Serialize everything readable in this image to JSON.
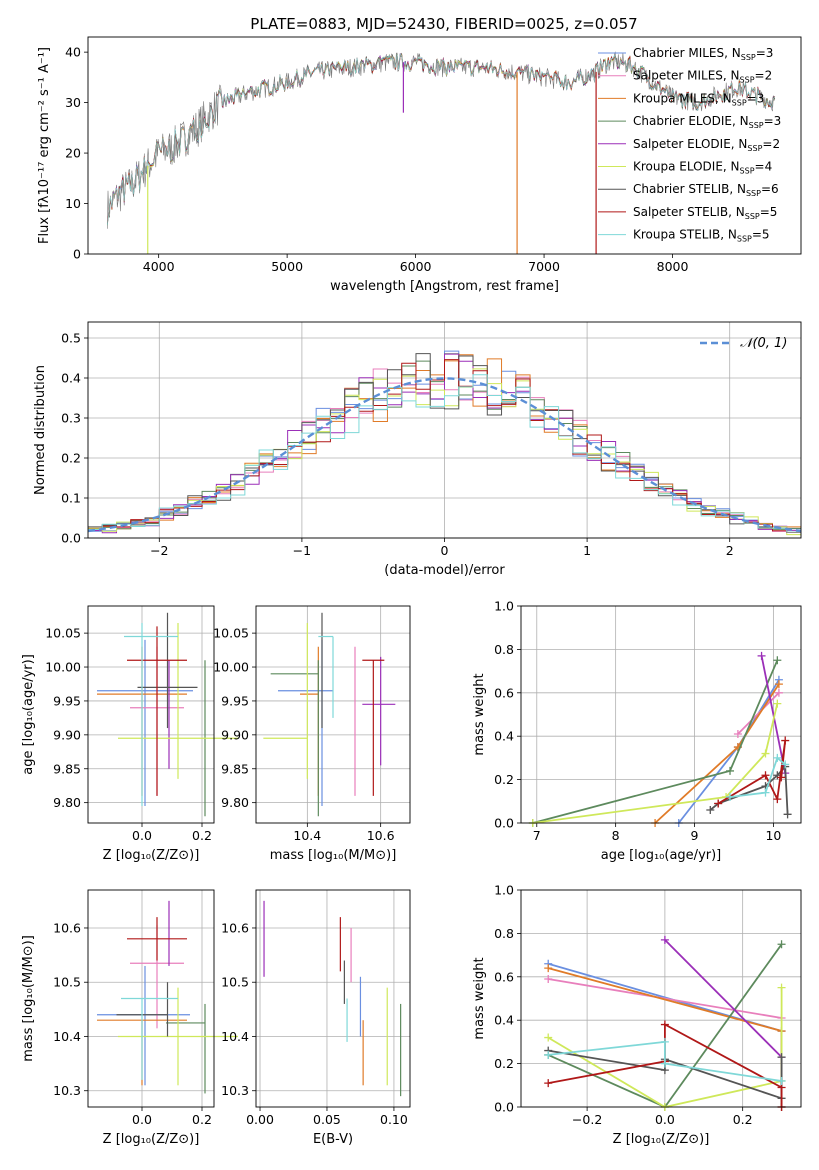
{
  "figure_title": "PLATE=0883, MJD=52430, FIBERID=0025, z=0.057",
  "colors": {
    "Chabrier MILES": "#6a8fe0",
    "Salpeter MILES": "#e87fbc",
    "Kroupa MILES": "#e07b28",
    "Chabrier ELODIE": "#5d8a5d",
    "Salpeter ELODIE": "#9b2fb8",
    "Kroupa ELODIE": "#cfe85a",
    "Chabrier STELIB": "#555555",
    "Salpeter STELIB": "#b01818",
    "Kroupa STELIB": "#7fd8d8"
  },
  "chart_data": [
    {
      "id": "spectrum",
      "type": "line",
      "title": "",
      "xlabel": "wavelength [Angstrom, rest frame]",
      "ylabel": "Flux [fλ10⁻¹⁷ erg cm⁻² s⁻¹ A⁻¹]",
      "xlim": [
        3450,
        9000
      ],
      "ylim": [
        0,
        43
      ],
      "xticks": [
        4000,
        5000,
        6000,
        7000,
        8000
      ],
      "yticks": [
        0,
        10,
        20,
        30,
        40
      ],
      "grid": false,
      "legend_position": "right",
      "legend": [
        "Chabrier MILES, N_SSP=3",
        "Salpeter MILES, N_SSP=2",
        "Kroupa MILES, N_SSP=3",
        "Chabrier ELODIE, N_SSP=3",
        "Salpeter ELODIE, N_SSP=2",
        "Kroupa ELODIE, N_SSP=4",
        "Chabrier STELIB, N_SSP=6",
        "Salpeter STELIB, N_SSP=5",
        "Kroupa STELIB, N_SSP=5"
      ],
      "continuum_x": [
        3600,
        3700,
        3800,
        3900,
        4000,
        4100,
        4200,
        4300,
        4400,
        4500,
        4700,
        5000,
        5200,
        5500,
        5800,
        6000,
        6200,
        6500,
        6800,
        7000,
        7200,
        7400,
        7500,
        7600,
        7700,
        7800,
        8000,
        8200,
        8500,
        8800
      ],
      "continuum_y": [
        9,
        12,
        14,
        17,
        20,
        21,
        23,
        25,
        28,
        30,
        32,
        34,
        36,
        37,
        38,
        38,
        37,
        37,
        36,
        35,
        34,
        36,
        38,
        38,
        37,
        35,
        31,
        30,
        33,
        30
      ]
    },
    {
      "id": "residuals",
      "type": "histogram",
      "xlabel": "(data-model)/error",
      "ylabel": "Normed distribution",
      "xlim": [
        -2.5,
        2.5
      ],
      "ylim": [
        0,
        0.54
      ],
      "xticks": [
        -2,
        -1,
        0,
        1,
        2
      ],
      "yticks": [
        0.0,
        0.1,
        0.2,
        0.3,
        0.4,
        0.5
      ],
      "grid": true,
      "legend": [
        "𝒩(0, 1)"
      ],
      "legend_position": "top-right",
      "bin_width": 0.1,
      "reference_curve": "normal(0,1)"
    },
    {
      "id": "z_age",
      "type": "errorbar",
      "xlabel": "Z [log₁₀(Z/Z⊙)]",
      "ylabel": "age  [log₁₀(age/yr)]",
      "xlim": [
        -0.18,
        0.24
      ],
      "ylim": [
        9.77,
        10.09
      ],
      "xticks": [
        0.0,
        0.2
      ],
      "yticks": [
        9.8,
        9.85,
        9.9,
        9.95,
        10.0,
        10.05
      ],
      "grid": true,
      "points": [
        {
          "model": "Chabrier MILES",
          "x": 0.01,
          "xerr": [
            0.16,
            0.16
          ],
          "y": 9.965,
          "yerr": [
            0.17,
            0.075
          ]
        },
        {
          "model": "Salpeter MILES",
          "x": 0.05,
          "xerr": [
            0.09,
            0.09
          ],
          "y": 9.94,
          "yerr": [
            0.13,
            0.09
          ]
        },
        {
          "model": "Kroupa MILES",
          "x": 0.0,
          "xerr": [
            0.15,
            0.15
          ],
          "y": 9.96,
          "yerr": [
            0.15,
            0.07
          ]
        },
        {
          "model": "Chabrier ELODIE",
          "x": 0.21,
          "xerr": [
            0.0,
            0.0
          ],
          "y": 9.99,
          "yerr": [
            0.21,
            0.02
          ]
        },
        {
          "model": "Salpeter ELODIE",
          "x": 0.09,
          "xerr": [
            0.0,
            0.0
          ],
          "y": 9.94,
          "yerr": [
            0.09,
            0.07
          ]
        },
        {
          "model": "Kroupa ELODIE",
          "x": 0.12,
          "xerr": [
            0.2,
            0.2
          ],
          "y": 9.895,
          "yerr": [
            0.06,
            0.17
          ]
        },
        {
          "model": "Chabrier STELIB",
          "x": 0.085,
          "xerr": [
            0.1,
            0.1
          ],
          "y": 9.97,
          "yerr": [
            0.06,
            0.11
          ]
        },
        {
          "model": "Salpeter STELIB",
          "x": 0.05,
          "xerr": [
            0.1,
            0.1
          ],
          "y": 10.01,
          "yerr": [
            0.2,
            0.05
          ]
        },
        {
          "model": "Kroupa STELIB",
          "x": 0.0,
          "xerr": [
            0.06,
            0.12
          ],
          "y": 10.045,
          "yerr": [
            0.25,
            0.02
          ]
        }
      ]
    },
    {
      "id": "mass_age",
      "type": "errorbar",
      "xlabel": "mass [log₁₀(M/M⊙)]",
      "ylabel": "",
      "xlim": [
        10.26,
        10.68
      ],
      "ylim": [
        9.77,
        10.09
      ],
      "xticks": [
        10.4,
        10.6
      ],
      "yticks": [
        9.8,
        9.85,
        9.9,
        9.95,
        10.0,
        10.05
      ],
      "grid": true,
      "points": [
        {
          "model": "Chabrier MILES",
          "x": 10.44,
          "xerr": [
            0.12,
            0.03
          ],
          "y": 9.965,
          "yerr": [
            0.17,
            0.075
          ]
        },
        {
          "model": "Salpeter MILES",
          "x": 10.53,
          "xerr": [
            0.0,
            0.0
          ],
          "y": 9.94,
          "yerr": [
            0.13,
            0.09
          ]
        },
        {
          "model": "Kroupa MILES",
          "x": 10.43,
          "xerr": [
            0.05,
            0.0
          ],
          "y": 9.96,
          "yerr": [
            0.15,
            0.07
          ]
        },
        {
          "model": "Chabrier ELODIE",
          "x": 10.43,
          "xerr": [
            0.13,
            0.0
          ],
          "y": 9.99,
          "yerr": [
            0.21,
            0.02
          ]
        },
        {
          "model": "Salpeter ELODIE",
          "x": 10.6,
          "xerr": [
            0.05,
            0.04
          ],
          "y": 9.945,
          "yerr": [
            0.09,
            0.07
          ]
        },
        {
          "model": "Kroupa ELODIE",
          "x": 10.4,
          "xerr": [
            0.12,
            0.0
          ],
          "y": 9.895,
          "yerr": [
            0.06,
            0.17
          ]
        },
        {
          "model": "Chabrier STELIB",
          "x": 10.44,
          "xerr": [
            0.0,
            0.0
          ],
          "y": 9.97,
          "yerr": [
            0.06,
            0.11
          ]
        },
        {
          "model": "Salpeter STELIB",
          "x": 10.58,
          "xerr": [
            0.03,
            0.03
          ],
          "y": 10.01,
          "yerr": [
            0.2,
            0.0
          ]
        },
        {
          "model": "Kroupa STELIB",
          "x": 10.47,
          "xerr": [
            0.04,
            0.0
          ],
          "y": 10.045,
          "yerr": [
            0.12,
            0.0
          ]
        }
      ]
    },
    {
      "id": "age_weight",
      "type": "line",
      "xlabel": "age  [log₁₀(age/yr)]",
      "ylabel": "mass weight",
      "xlim": [
        6.8,
        10.35
      ],
      "ylim": [
        0.0,
        1.0
      ],
      "xticks": [
        7,
        8,
        9,
        10
      ],
      "yticks": [
        0.0,
        0.2,
        0.4,
        0.6,
        0.8,
        1.0
      ],
      "grid": true,
      "series": [
        {
          "model": "Chabrier MILES",
          "x": [
            8.8,
            9.55,
            10.07
          ],
          "y": [
            0.0,
            0.35,
            0.66
          ]
        },
        {
          "model": "Salpeter MILES",
          "x": [
            9.55,
            10.07
          ],
          "y": [
            0.41,
            0.6
          ]
        },
        {
          "model": "Kroupa MILES",
          "x": [
            8.5,
            9.55,
            10.07
          ],
          "y": [
            0.0,
            0.35,
            0.64
          ]
        },
        {
          "model": "Chabrier ELODIE",
          "x": [
            6.95,
            9.45,
            10.05
          ],
          "y": [
            0.0,
            0.24,
            0.75
          ]
        },
        {
          "model": "Salpeter ELODIE",
          "x": [
            9.85,
            10.15
          ],
          "y": [
            0.77,
            0.23
          ]
        },
        {
          "model": "Kroupa ELODIE",
          "x": [
            6.95,
            9.4,
            9.9,
            10.05
          ],
          "y": [
            0.0,
            0.12,
            0.32,
            0.55
          ]
        },
        {
          "model": "Chabrier STELIB",
          "x": [
            9.2,
            9.3,
            9.9,
            10.05,
            10.15,
            10.18
          ],
          "y": [
            0.06,
            0.09,
            0.17,
            0.22,
            0.26,
            0.04
          ]
        },
        {
          "model": "Salpeter STELIB",
          "x": [
            9.3,
            9.9,
            10.05,
            10.15,
            10.1
          ],
          "y": [
            0.09,
            0.22,
            0.11,
            0.38,
            0.21
          ]
        },
        {
          "model": "Kroupa STELIB",
          "x": [
            9.45,
            9.9,
            10.05,
            10.15
          ],
          "y": [
            0.12,
            0.14,
            0.3,
            0.27
          ]
        }
      ]
    },
    {
      "id": "z_mass",
      "type": "errorbar",
      "xlabel": "Z [log₁₀(Z/Z⊙)]",
      "ylabel": "mass [log₁₀(M/M⊙)]",
      "xlim": [
        -0.18,
        0.24
      ],
      "ylim": [
        10.27,
        10.67
      ],
      "xticks": [
        0.0,
        0.2
      ],
      "yticks": [
        10.3,
        10.4,
        10.5,
        10.6
      ],
      "grid": true,
      "points": [
        {
          "model": "Chabrier MILES",
          "x": 0.01,
          "xerr": [
            0.16,
            0.15
          ],
          "y": 10.44,
          "yerr": [
            0.13,
            0.09
          ]
        },
        {
          "model": "Salpeter MILES",
          "x": 0.05,
          "xerr": [
            0.09,
            0.09
          ],
          "y": 10.535,
          "yerr": [
            0.12,
            0.07
          ]
        },
        {
          "model": "Kroupa MILES",
          "x": 0.0,
          "xerr": [
            0.15,
            0.15
          ],
          "y": 10.43,
          "yerr": [
            0.12,
            0.0
          ]
        },
        {
          "model": "Chabrier ELODIE",
          "x": 0.21,
          "xerr": [
            0.13,
            0.0
          ],
          "y": 10.425,
          "yerr": [
            0.13,
            0.035
          ]
        },
        {
          "model": "Salpeter ELODIE",
          "x": 0.09,
          "xerr": [
            0.0,
            0.0
          ],
          "y": 10.6,
          "yerr": [
            0.07,
            0.05
          ]
        },
        {
          "model": "Kroupa ELODIE",
          "x": 0.12,
          "xerr": [
            0.2,
            0.2
          ],
          "y": 10.4,
          "yerr": [
            0.09,
            0.09
          ]
        },
        {
          "model": "Chabrier STELIB",
          "x": 0.085,
          "xerr": [
            0.17,
            0.0
          ],
          "y": 10.44,
          "yerr": [
            0.04,
            0.06
          ]
        },
        {
          "model": "Salpeter STELIB",
          "x": 0.05,
          "xerr": [
            0.1,
            0.1
          ],
          "y": 10.58,
          "yerr": [
            0.04,
            0.04
          ]
        },
        {
          "model": "Kroupa STELIB",
          "x": 0.0,
          "xerr": [
            0.07,
            0.12
          ],
          "y": 10.47,
          "yerr": [
            0.15,
            0.0
          ]
        }
      ]
    },
    {
      "id": "ebv_mass",
      "type": "errorbar",
      "xlabel": "E(B-V)",
      "ylabel": "",
      "xlim": [
        -0.003,
        0.112
      ],
      "ylim": [
        10.27,
        10.67
      ],
      "xticks": [
        0.0,
        0.05,
        0.1
      ],
      "yticks": [
        10.3,
        10.4,
        10.5,
        10.6
      ],
      "grid": true,
      "points": [
        {
          "model": "Chabrier MILES",
          "x": 0.075,
          "xerr": [
            0,
            0
          ],
          "y": 10.47,
          "yerr": [
            0.07,
            0.04
          ]
        },
        {
          "model": "Salpeter MILES",
          "x": 0.068,
          "xerr": [
            0,
            0
          ],
          "y": 10.56,
          "yerr": [
            0.06,
            0.04
          ]
        },
        {
          "model": "Kroupa MILES",
          "x": 0.077,
          "xerr": [
            0,
            0
          ],
          "y": 10.43,
          "yerr": [
            0.12,
            0.0
          ]
        },
        {
          "model": "Chabrier ELODIE",
          "x": 0.105,
          "xerr": [
            0,
            0
          ],
          "y": 10.4,
          "yerr": [
            0.11,
            0.06
          ]
        },
        {
          "model": "Salpeter ELODIE",
          "x": 0.003,
          "xerr": [
            0,
            0
          ],
          "y": 10.6,
          "yerr": [
            0.09,
            0.05
          ]
        },
        {
          "model": "Kroupa ELODIE",
          "x": 0.095,
          "xerr": [
            0,
            0
          ],
          "y": 10.4,
          "yerr": [
            0.09,
            0.09
          ]
        },
        {
          "model": "Chabrier STELIB",
          "x": 0.063,
          "xerr": [
            0,
            0
          ],
          "y": 10.5,
          "yerr": [
            0.04,
            0.04
          ]
        },
        {
          "model": "Salpeter STELIB",
          "x": 0.06,
          "xerr": [
            0,
            0
          ],
          "y": 10.58,
          "yerr": [
            0.06,
            0.04
          ]
        },
        {
          "model": "Kroupa STELIB",
          "x": 0.065,
          "xerr": [
            0,
            0
          ],
          "y": 10.47,
          "yerr": [
            0.08,
            0.0
          ]
        }
      ]
    },
    {
      "id": "z_weight",
      "type": "line",
      "xlabel": "Z [log₁₀(Z/Z⊙)]",
      "ylabel": "mass weight",
      "xlim": [
        -0.37,
        0.35
      ],
      "ylim": [
        0.0,
        1.0
      ],
      "xticks": [
        -0.2,
        0.0,
        0.2
      ],
      "yticks": [
        0.0,
        0.2,
        0.4,
        0.6,
        0.8,
        1.0
      ],
      "grid": true,
      "series": [
        {
          "model": "Chabrier MILES",
          "x": [
            -0.3,
            0.3,
            0.3
          ],
          "y": [
            0.66,
            0.35,
            0.0
          ]
        },
        {
          "model": "Salpeter MILES",
          "x": [
            -0.3,
            0.3
          ],
          "y": [
            0.59,
            0.41
          ]
        },
        {
          "model": "Kroupa MILES",
          "x": [
            -0.3,
            0.3,
            0.3
          ],
          "y": [
            0.64,
            0.35,
            0.0
          ]
        },
        {
          "model": "Chabrier ELODIE",
          "x": [
            -0.3,
            0.0,
            0.3
          ],
          "y": [
            0.24,
            0.0,
            0.75
          ]
        },
        {
          "model": "Salpeter ELODIE",
          "x": [
            0.0,
            0.3
          ],
          "y": [
            0.77,
            0.23
          ]
        },
        {
          "model": "Kroupa ELODIE",
          "x": [
            -0.3,
            0.0,
            0.3,
            0.3
          ],
          "y": [
            0.32,
            0.0,
            0.12,
            0.55
          ]
        },
        {
          "model": "Chabrier STELIB",
          "x": [
            -0.3,
            0.0,
            0.0,
            0.3,
            0.3
          ],
          "y": [
            0.26,
            0.17,
            0.22,
            0.04,
            0.23
          ]
        },
        {
          "model": "Salpeter STELIB",
          "x": [
            -0.3,
            0.0,
            0.0,
            0.3,
            0.3
          ],
          "y": [
            0.11,
            0.21,
            0.38,
            0.09,
            0.0
          ]
        },
        {
          "model": "Kroupa STELIB",
          "x": [
            -0.3,
            0.0,
            0.0,
            0.3
          ],
          "y": [
            0.24,
            0.3,
            0.2,
            0.12
          ]
        }
      ]
    }
  ]
}
